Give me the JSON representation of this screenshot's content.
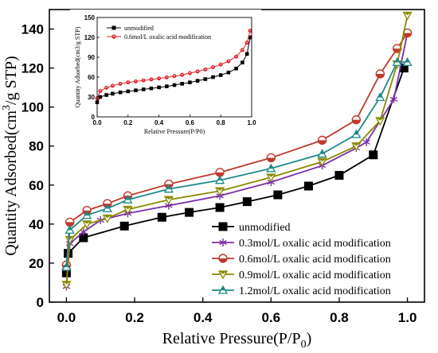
{
  "chart_data": [
    {
      "type": "line",
      "xlabel_main": "Relative Pressure(P/P",
      "xlabel_sub": "0",
      "xlabel_close": ")",
      "ylabel_main": "Quantity Adsorbed(cm",
      "ylabel_sup": "3",
      "ylabel_tail": "/g STP)",
      "xlim": [
        -0.05,
        1.05
      ],
      "ylim": [
        0,
        150
      ],
      "xticks": [
        0.0,
        0.2,
        0.4,
        0.6,
        0.8,
        1.0
      ],
      "xtick_labels": [
        "0.0",
        "0.2",
        "0.4",
        "0.6",
        "0.8",
        "1.0"
      ],
      "yticks": [
        0,
        20,
        40,
        60,
        80,
        100,
        120,
        140
      ],
      "ytick_labels": [
        "0",
        "20",
        "40",
        "60",
        "80",
        "100",
        "120",
        "140"
      ],
      "legend_position": "lower-right",
      "series": [
        {
          "name": "unmodified",
          "color": "#000000",
          "marker": "square",
          "points": [
            [
              0.0,
              15
            ],
            [
              0.005,
              25
            ],
            [
              0.05,
              33
            ],
            [
              0.17,
              39
            ],
            [
              0.28,
              43.5
            ],
            [
              0.36,
              46
            ],
            [
              0.45,
              48.5
            ],
            [
              0.53,
              51.5
            ],
            [
              0.62,
              55
            ],
            [
              0.71,
              59.5
            ],
            [
              0.8,
              65
            ],
            [
              0.9,
              75.5
            ],
            [
              0.99,
              120
            ]
          ]
        },
        {
          "name": "0.3mol/L oxalic acid modification",
          "color": "#7b2fa6",
          "marker": "star",
          "points": [
            [
              0.0,
              8
            ],
            [
              0.01,
              30
            ],
            [
              0.05,
              36
            ],
            [
              0.1,
              42
            ],
            [
              0.18,
              45.5
            ],
            [
              0.3,
              49.5
            ],
            [
              0.45,
              54.5
            ],
            [
              0.6,
              61.5
            ],
            [
              0.75,
              70
            ],
            [
              0.85,
              79
            ],
            [
              0.88,
              82
            ],
            [
              0.96,
              104
            ],
            [
              1.0,
              138
            ]
          ]
        },
        {
          "name": "0.6mol/L oxalic acid modification",
          "color": "#c0392b",
          "marker": "circle",
          "points": [
            [
              0.0,
              19
            ],
            [
              0.01,
              41
            ],
            [
              0.06,
              47
            ],
            [
              0.12,
              50.5
            ],
            [
              0.18,
              54.5
            ],
            [
              0.3,
              60.5
            ],
            [
              0.45,
              66.5
            ],
            [
              0.6,
              74
            ],
            [
              0.75,
              83
            ],
            [
              0.85,
              93.5
            ],
            [
              0.92,
              117
            ],
            [
              0.97,
              130
            ],
            [
              1.0,
              138
            ]
          ]
        },
        {
          "name": "0.9mol/L oxalic acid modification",
          "color": "#8a8a00",
          "marker": "triangle-down",
          "points": [
            [
              0.0,
              9
            ],
            [
              0.01,
              32
            ],
            [
              0.06,
              40
            ],
            [
              0.12,
              43
            ],
            [
              0.18,
              47.5
            ],
            [
              0.3,
              52.5
            ],
            [
              0.45,
              57
            ],
            [
              0.6,
              64
            ],
            [
              0.75,
              72
            ],
            [
              0.85,
              80
            ],
            [
              0.92,
              93
            ],
            [
              0.97,
              122
            ],
            [
              1.0,
              147
            ]
          ]
        },
        {
          "name": "1.2mol/L oxalic acid modification",
          "color": "#1f8a8a",
          "marker": "triangle-up",
          "points": [
            [
              0.0,
              18
            ],
            [
              0.01,
              37
            ],
            [
              0.06,
              44.5
            ],
            [
              0.12,
              48
            ],
            [
              0.18,
              52.5
            ],
            [
              0.3,
              58
            ],
            [
              0.45,
              62.5
            ],
            [
              0.6,
              68.5
            ],
            [
              0.75,
              76
            ],
            [
              0.85,
              86
            ],
            [
              0.92,
              105
            ],
            [
              0.97,
              123
            ],
            [
              1.0,
              123
            ]
          ]
        }
      ]
    },
    {
      "type": "line",
      "xlabel": "Relative Pressure(P/P0)",
      "ylabel": "Quantity Adsorbed(cm3/g STP)",
      "xlim": [
        0,
        1.0
      ],
      "ylim": [
        0,
        150
      ],
      "xticks": [
        0.0,
        0.2,
        0.4,
        0.6,
        0.8,
        1.0
      ],
      "xtick_labels": [
        "0.0",
        "0.2",
        "0.4",
        "0.6",
        "0.8",
        "1.0"
      ],
      "yticks": [
        0,
        30,
        60,
        90,
        120,
        150
      ],
      "ytick_labels": [
        "0",
        "30",
        "60",
        "90",
        "120",
        "150"
      ],
      "legend_position": "top-left",
      "series": [
        {
          "name": "unmodified",
          "color": "#000000",
          "marker": "square",
          "points": [
            [
              0.0,
              22
            ],
            [
              0.02,
              30
            ],
            [
              0.06,
              33
            ],
            [
              0.1,
              35
            ],
            [
              0.15,
              37
            ],
            [
              0.2,
              38.5
            ],
            [
              0.25,
              40
            ],
            [
              0.3,
              41.5
            ],
            [
              0.35,
              43
            ],
            [
              0.4,
              44.5
            ],
            [
              0.45,
              46
            ],
            [
              0.5,
              48
            ],
            [
              0.55,
              50
            ],
            [
              0.6,
              52
            ],
            [
              0.65,
              54.5
            ],
            [
              0.7,
              57
            ],
            [
              0.75,
              60
            ],
            [
              0.8,
              63
            ],
            [
              0.85,
              67
            ],
            [
              0.9,
              73
            ],
            [
              0.94,
              82
            ],
            [
              0.97,
              95
            ],
            [
              0.99,
              120
            ]
          ]
        },
        {
          "name": "0.6mol/L oxalic acid modification",
          "color": "#e0242a",
          "marker": "circle",
          "points": [
            [
              0.0,
              28
            ],
            [
              0.02,
              39
            ],
            [
              0.06,
              44
            ],
            [
              0.1,
              47
            ],
            [
              0.15,
              50
            ],
            [
              0.2,
              52
            ],
            [
              0.25,
              53.5
            ],
            [
              0.3,
              55
            ],
            [
              0.35,
              56.5
            ],
            [
              0.4,
              58
            ],
            [
              0.45,
              59.5
            ],
            [
              0.5,
              61.5
            ],
            [
              0.55,
              63.5
            ],
            [
              0.6,
              66
            ],
            [
              0.65,
              68.5
            ],
            [
              0.7,
              71.5
            ],
            [
              0.75,
              75
            ],
            [
              0.8,
              79
            ],
            [
              0.85,
              84
            ],
            [
              0.9,
              91
            ],
            [
              0.94,
              101
            ],
            [
              0.97,
              112
            ],
            [
              0.99,
              130
            ]
          ]
        }
      ]
    }
  ]
}
